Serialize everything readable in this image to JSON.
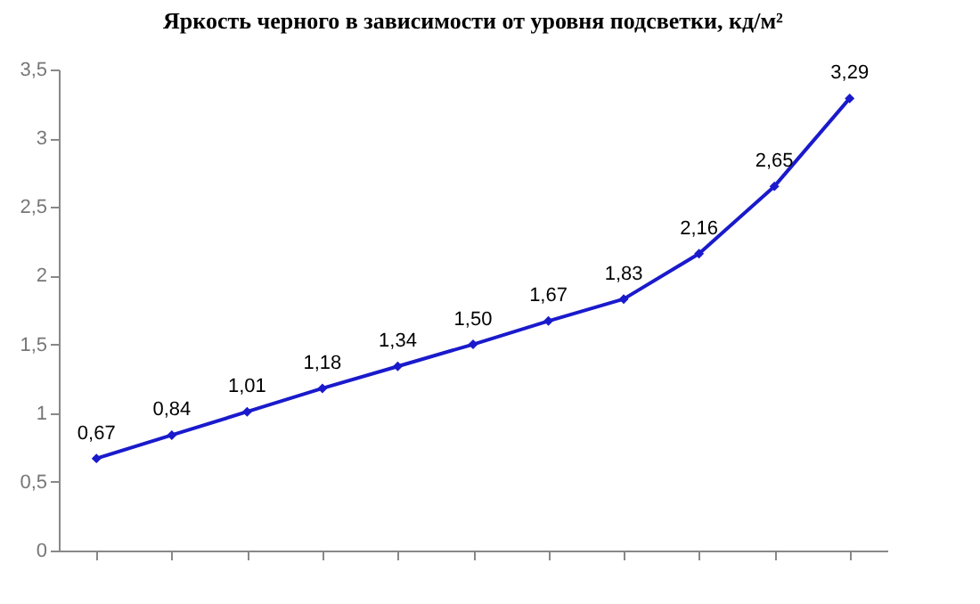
{
  "chart_data": {
    "type": "line",
    "title": "Яркость черного в зависимости от уровня подсветки, кд/м²",
    "categories": [
      null,
      null,
      null,
      null,
      null,
      null,
      null,
      null,
      null,
      null,
      null
    ],
    "series": [
      {
        "color": "#1a1acc",
        "values": [
          0.67,
          0.84,
          1.01,
          1.18,
          1.34,
          1.5,
          1.67,
          1.83,
          2.16,
          2.65,
          3.29
        ],
        "value_labels": [
          "0,67",
          "0,84",
          "1,01",
          "1,18",
          "1,34",
          "1,50",
          "1,67",
          "1,83",
          "2,16",
          "2,65",
          "3,29"
        ]
      }
    ],
    "ylim": [
      0,
      3.5
    ],
    "yticks": [
      0,
      {
        "value": 0.5,
        "label": "0,5"
      },
      1,
      {
        "value": 1.5,
        "label": "1,5"
      },
      2,
      {
        "value": 2.5,
        "label": "2,5"
      },
      3,
      {
        "value": 3.5,
        "label": "3,5"
      }
    ],
    "marker": "diamond",
    "line_style": "solid"
  }
}
